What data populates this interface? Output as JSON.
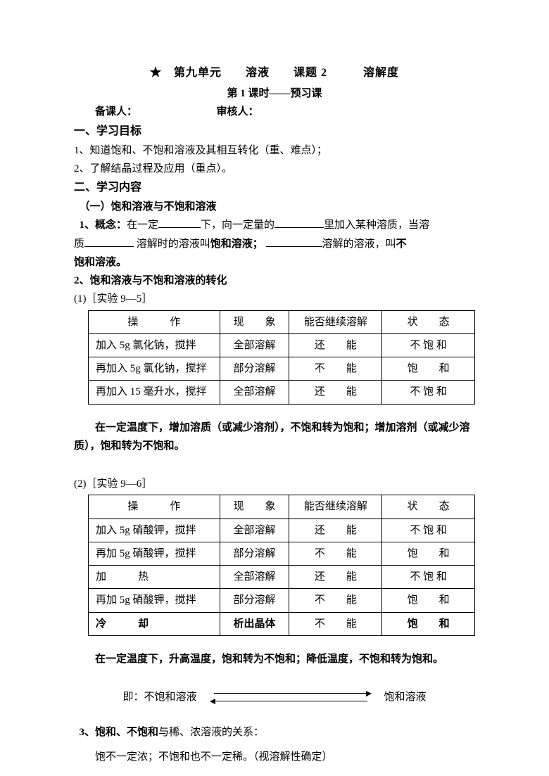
{
  "header": {
    "title": "★　第九单元　　溶液　　课题 2　　　溶解度",
    "subtitle": "第 1 课时——预习课",
    "people": "备课人：　　　　　　　　审核人："
  },
  "sec1": {
    "head": "一、学习目标",
    "p1": "1、知道饱和、不饱和溶液及其相互转化（重、难点）；",
    "p2": "2、了解结晶过程及应用（重点）。"
  },
  "sec2": {
    "head": "二、学习内容",
    "sub1": "（一）饱和溶液与不饱和溶液",
    "concept_label": "1、概念：",
    "concept_a": "在一定",
    "concept_b": "下，向一定量的",
    "concept_c": "里加入某种溶质，当溶",
    "concept_d": "质",
    "concept_e": "溶解时的溶液叫",
    "concept_f": "饱和溶液；",
    "concept_g": "溶解的溶液，叫",
    "concept_h": "不",
    "concept_i": "饱和溶液。",
    "sub2": "2、饱和溶液与不饱和溶液的转化"
  },
  "exp1": {
    "label": "(1)［实验 9—5］",
    "cols": {
      "c1": "操　　　作",
      "c2": "现　　象",
      "c3": "能否继续溶解",
      "c4": "状　　态"
    },
    "rows": [
      {
        "op": "加入 5g 氯化钠，搅拌",
        "ph": "全部溶解",
        "can": "还　　能",
        "st": "不 饱 和"
      },
      {
        "op": "再加入 5g 氯化钠，搅拌",
        "ph": "部分溶解",
        "can": "不　　能",
        "st": "饱　　和"
      },
      {
        "op": "再加入 15 毫升水，搅拌",
        "ph": "全部溶解",
        "can": "还　　能",
        "st": "不 饱 和"
      }
    ],
    "note": "　　在一定温度下，增加溶质（或减少溶剂），不饱和转为饱和；增加溶剂（或减少溶质），饱和转为不饱和。"
  },
  "exp2": {
    "label": "(2)［实验 9—6］",
    "cols": {
      "c1": "操　　　作",
      "c2": "现　　象",
      "c3": "能否继续溶解",
      "c4": "状　　态"
    },
    "rows": [
      {
        "op": "加入 5g 硝酸钾，搅拌",
        "ph": "全部溶解",
        "can": "还　　能",
        "st": "不 饱 和",
        "b": false
      },
      {
        "op": "再加 5g 硝酸钾，搅拌",
        "ph": "部分溶解",
        "can": "不　　能",
        "st": "饱　　和",
        "b": false
      },
      {
        "op": "加　　　热",
        "ph": "全部溶解",
        "can": "还　　能",
        "st": "不 饱 和",
        "b": false
      },
      {
        "op": "再加 5g 硝酸钾，搅拌",
        "ph": "部分溶解",
        "can": "不　　能",
        "st": "饱　　和",
        "b": false
      },
      {
        "op": "冷　　　却",
        "ph": "析出晶体",
        "can": "不　　能",
        "st": "饱　　和",
        "b": true
      }
    ],
    "note": "　　在一定温度下，升高温度，饱和转为不饱和；降低温度，不饱和转为饱和。"
  },
  "arrow": {
    "prefix": "即：",
    "left": "不饱和溶液",
    "right": "饱和溶液"
  },
  "sec3": {
    "head_a": "3、饱和、不饱和",
    "head_b": "与稀、浓溶液的关系：",
    "body": "饱不一定浓；不饱和也不一定稀。（视溶解性确定）"
  }
}
